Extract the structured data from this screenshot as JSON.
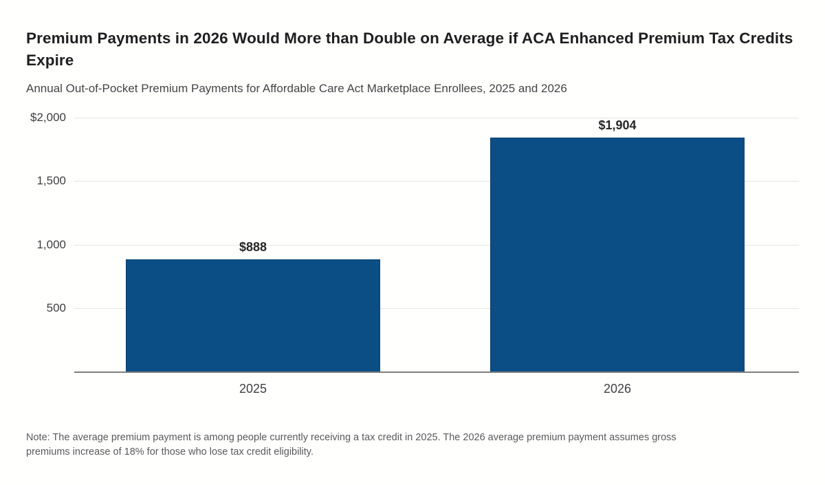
{
  "figure": {
    "title": "Premium Payments in 2026 Would More than Double on Average if ACA Enhanced Premium Tax Credits Expire",
    "subtitle": "Annual Out-of-Pocket Premium Payments for Affordable Care Act Marketplace Enrollees, 2025 and 2026",
    "note": "Note: The average premium payment is among people currently receiving a tax credit in 2025. The 2026 average premium payment assumes gross premiums increase of 18% for those who lose tax credit eligibility."
  },
  "chart_data": {
    "type": "bar",
    "categories": [
      "2025",
      "2026"
    ],
    "values": [
      888,
      1904
    ],
    "value_labels": [
      "$888",
      "$1,904"
    ],
    "title": "Premium Payments in 2026 Would More than Double on Average if ACA Enhanced Premium Tax Credits Expire",
    "subtitle": "Annual Out-of-Pocket Premium Payments for Affordable Care Act Marketplace Enrollees, 2025 and 2026",
    "xlabel": "",
    "ylabel": "",
    "ylim": [
      0,
      2000
    ],
    "yticks": [
      {
        "value": 2000,
        "label": "$2,000"
      },
      {
        "value": 1500,
        "label": "1,500"
      },
      {
        "value": 1000,
        "label": "1,000"
      },
      {
        "value": 500,
        "label": "500"
      }
    ],
    "grid": true,
    "legend": false,
    "note": "Note: The average premium payment is among people currently receiving a tax credit in 2025. The 2026 average premium payment assumes gross premiums increase of 18% for those who lose tax credit eligibility."
  },
  "colors": {
    "bar": "#0b4e86",
    "bar_edge": "#0a3f6b",
    "grid": "#e4e4e4",
    "axis": "#7d7d7d",
    "title_text": "#1e1e1e",
    "body_text": "#434343",
    "note_text": "#595959"
  }
}
